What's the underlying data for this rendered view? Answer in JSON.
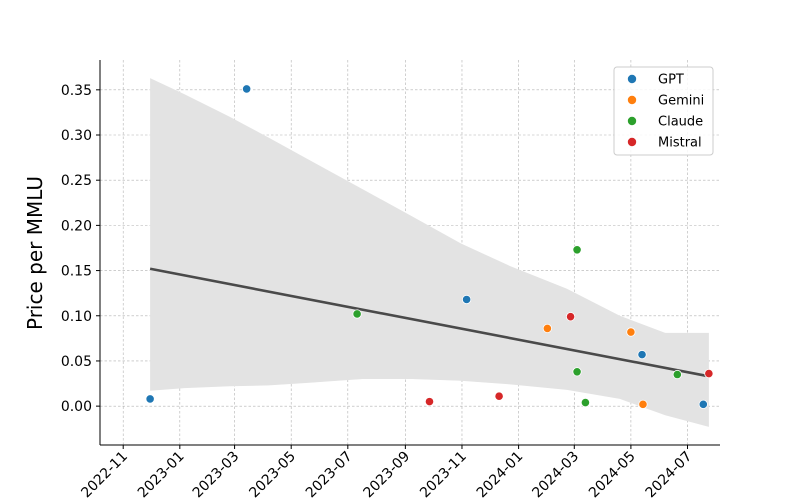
{
  "chart_data": {
    "type": "scatter",
    "title": "",
    "xlabel": "",
    "ylabel": "Price per MMLU",
    "x_is_date": true,
    "xlim": [
      "2022-10-07",
      "2024-08-05"
    ],
    "ylim": [
      -0.043,
      0.383
    ],
    "x_ticks": [
      "2022-11",
      "2023-01",
      "2023-03",
      "2023-05",
      "2023-07",
      "2023-09",
      "2023-11",
      "2024-01",
      "2024-03",
      "2024-05",
      "2024-07"
    ],
    "x_tick_dates": [
      "2022-11-01",
      "2023-01-01",
      "2023-03-01",
      "2023-05-01",
      "2023-07-01",
      "2023-09-01",
      "2023-11-01",
      "2024-01-01",
      "2024-03-01",
      "2024-05-01",
      "2024-07-01"
    ],
    "y_ticks": [
      0.0,
      0.05,
      0.1,
      0.15,
      0.2,
      0.25,
      0.3,
      0.35
    ],
    "y_tick_labels": [
      "0.00",
      "0.05",
      "0.10",
      "0.15",
      "0.20",
      "0.25",
      "0.30",
      "0.35"
    ],
    "grid": true,
    "legend_position": "top-right",
    "series": [
      {
        "name": "GPT",
        "color": "#1f77b4",
        "points": [
          {
            "x": "2022-11-30",
            "y": 0.008
          },
          {
            "x": "2023-03-14",
            "y": 0.351
          },
          {
            "x": "2023-11-06",
            "y": 0.118
          },
          {
            "x": "2024-05-13",
            "y": 0.057
          },
          {
            "x": "2024-07-18",
            "y": 0.002
          }
        ]
      },
      {
        "name": "Gemini",
        "color": "#ff7f0e",
        "points": [
          {
            "x": "2024-02-01",
            "y": 0.086
          },
          {
            "x": "2024-05-01",
            "y": 0.082
          },
          {
            "x": "2024-05-14",
            "y": 0.002
          }
        ]
      },
      {
        "name": "Claude",
        "color": "#2ca02c",
        "points": [
          {
            "x": "2023-07-11",
            "y": 0.102
          },
          {
            "x": "2024-03-04",
            "y": 0.173
          },
          {
            "x": "2024-03-04",
            "y": 0.038
          },
          {
            "x": "2024-03-13",
            "y": 0.004
          },
          {
            "x": "2024-06-20",
            "y": 0.035
          }
        ]
      },
      {
        "name": "Mistral",
        "color": "#d62728",
        "points": [
          {
            "x": "2023-09-27",
            "y": 0.005
          },
          {
            "x": "2023-12-11",
            "y": 0.011
          },
          {
            "x": "2024-02-26",
            "y": 0.099
          },
          {
            "x": "2024-07-24",
            "y": 0.036
          }
        ]
      }
    ],
    "regression": {
      "color": "#4a4a4a",
      "start": {
        "x": "2022-11-30",
        "y": 0.152
      },
      "end": {
        "x": "2024-07-24",
        "y": 0.033
      },
      "ci_band": {
        "color": "#e3e3e3",
        "points": [
          {
            "x": "2022-11-30",
            "upper": 0.363,
            "lower": 0.017
          },
          {
            "x": "2023-01-06",
            "upper": 0.345,
            "lower": 0.02
          },
          {
            "x": "2023-02-24",
            "upper": 0.32,
            "lower": 0.022
          },
          {
            "x": "2023-04-07",
            "upper": 0.297,
            "lower": 0.023
          },
          {
            "x": "2023-05-23",
            "upper": 0.271,
            "lower": 0.026
          },
          {
            "x": "2023-07-17",
            "upper": 0.24,
            "lower": 0.03
          },
          {
            "x": "2023-09-08",
            "upper": 0.21,
            "lower": 0.03
          },
          {
            "x": "2023-10-31",
            "upper": 0.18,
            "lower": 0.028
          },
          {
            "x": "2023-12-23",
            "upper": 0.155,
            "lower": 0.024
          },
          {
            "x": "2024-02-22",
            "upper": 0.13,
            "lower": 0.018
          },
          {
            "x": "2024-04-19",
            "upper": 0.1,
            "lower": 0.008
          },
          {
            "x": "2024-06-07",
            "upper": 0.081,
            "lower": -0.01
          },
          {
            "x": "2024-07-24",
            "upper": 0.081,
            "lower": -0.023
          }
        ]
      }
    }
  }
}
